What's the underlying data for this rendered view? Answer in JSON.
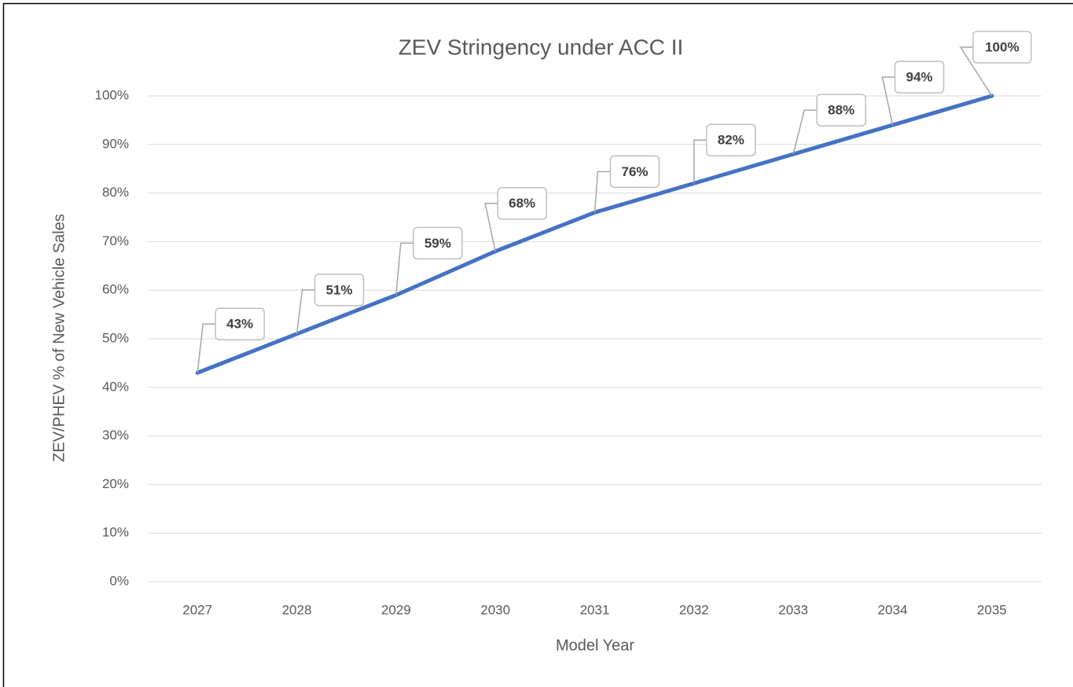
{
  "chart_data": {
    "type": "line",
    "title": "ZEV Stringency under ACC II",
    "x_label": "Model Year",
    "y_label": "ZEV/PHEV % of New Vehicle Sales",
    "categories": [
      "2027",
      "2028",
      "2029",
      "2030",
      "2031",
      "2032",
      "2033",
      "2034",
      "2035"
    ],
    "values": [
      43,
      51,
      59,
      68,
      76,
      82,
      88,
      94,
      100
    ],
    "value_labels": [
      "43%",
      "51%",
      "59%",
      "68%",
      "76%",
      "82%",
      "88%",
      "94%",
      "100%"
    ],
    "color": "#4472c4",
    "ylim": [
      0,
      100
    ],
    "yticks": [
      {
        "value": 0,
        "label": "0%"
      },
      {
        "value": 10,
        "label": "10%"
      },
      {
        "value": 20,
        "label": "20%"
      },
      {
        "value": 30,
        "label": "30%"
      },
      {
        "value": 40,
        "label": "40%"
      },
      {
        "value": 50,
        "label": "50%"
      },
      {
        "value": 60,
        "label": "60%"
      },
      {
        "value": 70,
        "label": "70%"
      },
      {
        "value": 80,
        "label": "80%"
      },
      {
        "value": 90,
        "label": "90%"
      },
      {
        "value": 100,
        "label": "100%"
      }
    ],
    "grid": true
  }
}
